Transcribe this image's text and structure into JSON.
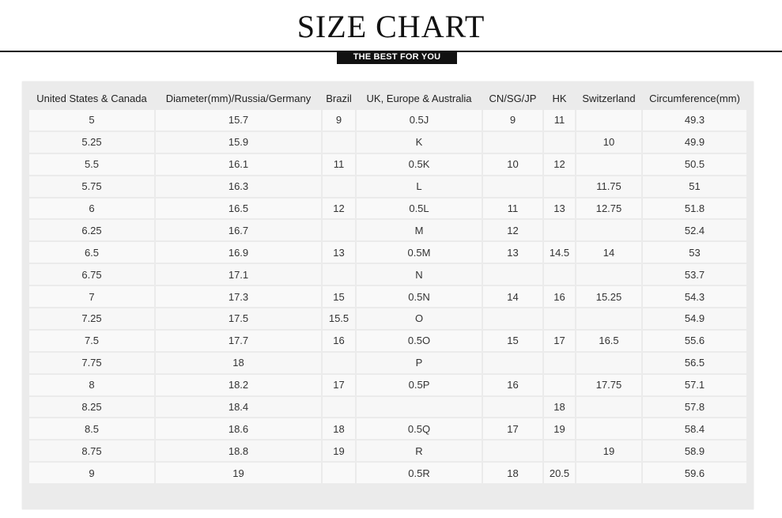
{
  "header": {
    "title": "SIZE CHART",
    "subtitle": "THE BEST FOR YOU"
  },
  "table": {
    "columns": [
      "United States & Canada",
      "Diameter(mm)/Russia/Germany",
      "Brazil",
      "UK, Europe & Australia",
      "CN/SG/JP",
      "HK",
      "Switzerland",
      "Circumference(mm)"
    ],
    "rows": [
      [
        "5",
        "15.7",
        "9",
        "0.5J",
        "9",
        "11",
        "",
        "49.3"
      ],
      [
        "5.25",
        "15.9",
        "",
        "K",
        "",
        "",
        "10",
        "49.9"
      ],
      [
        "5.5",
        "16.1",
        "11",
        "0.5K",
        "10",
        "12",
        "",
        "50.5"
      ],
      [
        "5.75",
        "16.3",
        "",
        "L",
        "",
        "",
        "11.75",
        "51"
      ],
      [
        "6",
        "16.5",
        "12",
        "0.5L",
        "11",
        "13",
        "12.75",
        "51.8"
      ],
      [
        "6.25",
        "16.7",
        "",
        "M",
        "12",
        "",
        "",
        "52.4"
      ],
      [
        "6.5",
        "16.9",
        "13",
        "0.5M",
        "13",
        "14.5",
        "14",
        "53"
      ],
      [
        "6.75",
        "17.1",
        "",
        "N",
        "",
        "",
        "",
        "53.7"
      ],
      [
        "7",
        "17.3",
        "15",
        "0.5N",
        "14",
        "16",
        "15.25",
        "54.3"
      ],
      [
        "7.25",
        "17.5",
        "15.5",
        "O",
        "",
        "",
        "",
        "54.9"
      ],
      [
        "7.5",
        "17.7",
        "16",
        "0.5O",
        "15",
        "17",
        "16.5",
        "55.6"
      ],
      [
        "7.75",
        "18",
        "",
        "P",
        "",
        "",
        "",
        "56.5"
      ],
      [
        "8",
        "18.2",
        "17",
        "0.5P",
        "16",
        "",
        "17.75",
        "57.1"
      ],
      [
        "8.25",
        "18.4",
        "",
        "",
        "",
        "18",
        "",
        "57.8"
      ],
      [
        "8.5",
        "18.6",
        "18",
        "0.5Q",
        "17",
        "19",
        "",
        "58.4"
      ],
      [
        "8.75",
        "18.8",
        "19",
        "R",
        "",
        "",
        "19",
        "58.9"
      ],
      [
        "9",
        "19",
        "",
        "0.5R",
        "18",
        "20.5",
        "",
        "59.6"
      ]
    ]
  }
}
